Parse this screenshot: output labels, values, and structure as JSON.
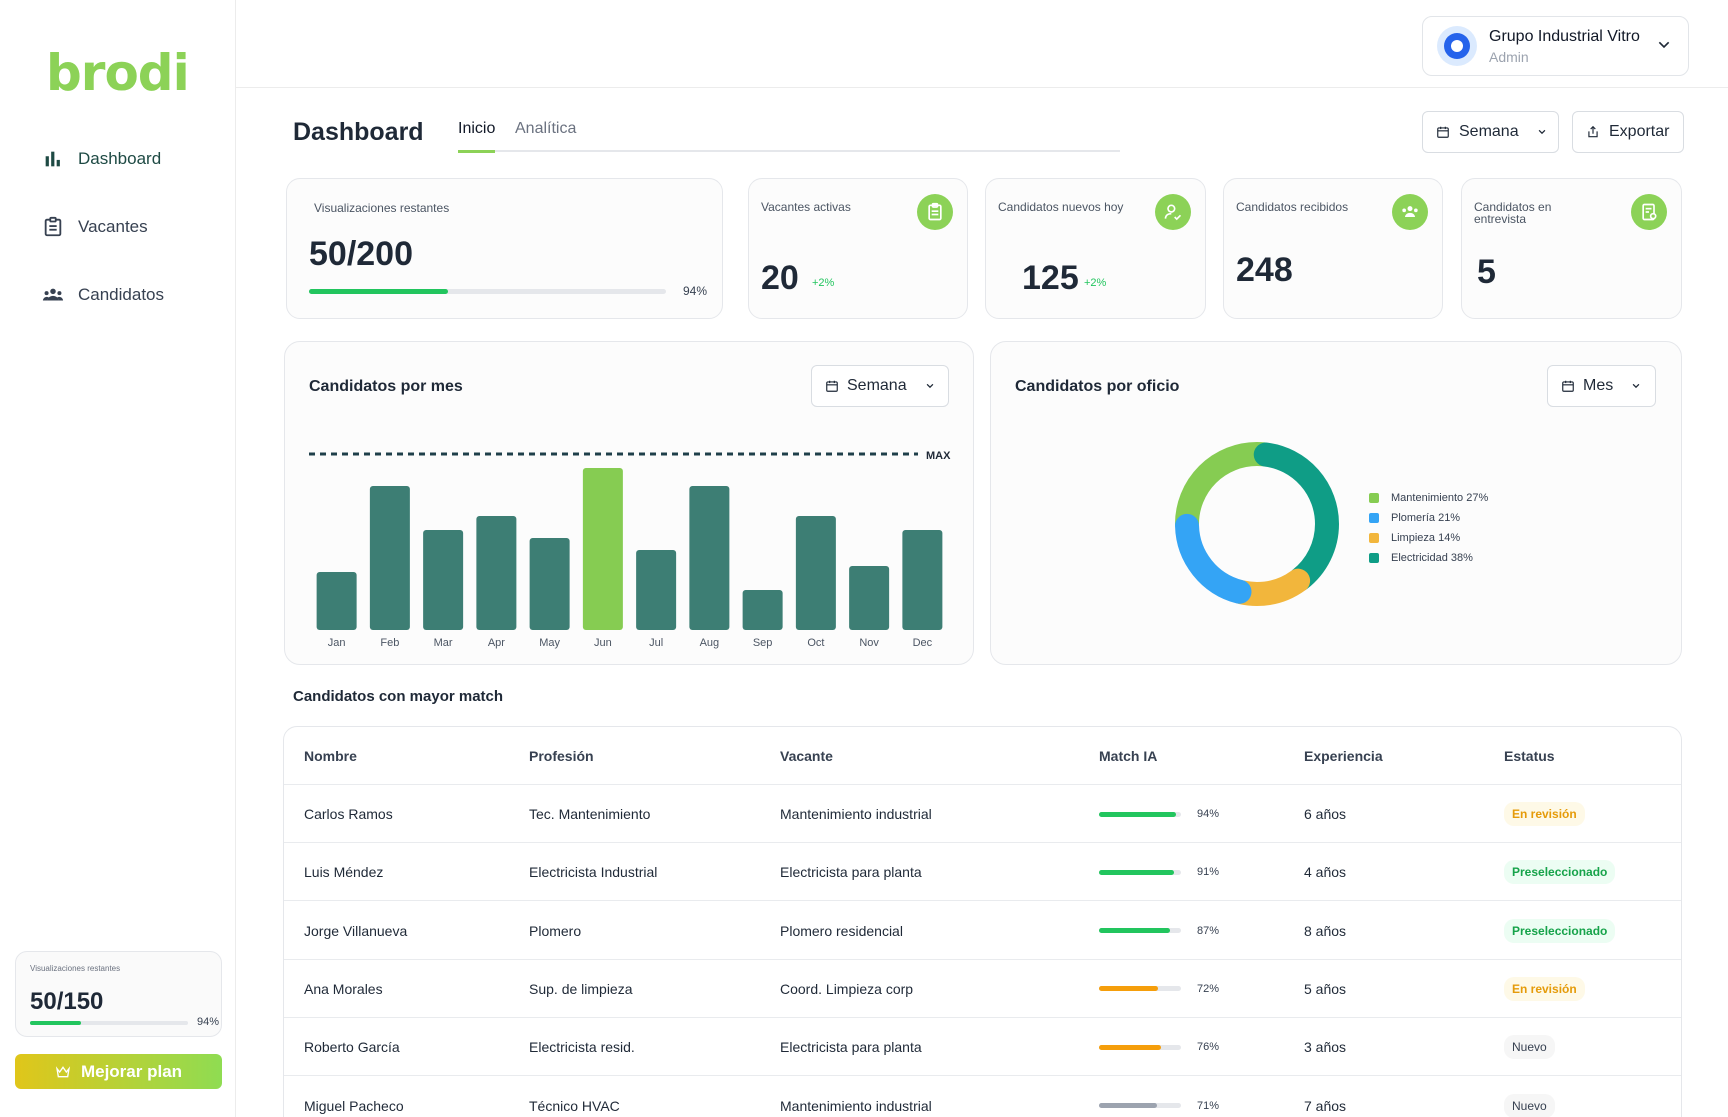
{
  "brand": {
    "logo": "brodi",
    "accent": "#8cd257"
  },
  "sidebar": {
    "items": [
      {
        "label": "Dashboard",
        "icon": "bar-chart-icon"
      },
      {
        "label": "Vacantes",
        "icon": "clipboard-icon"
      },
      {
        "label": "Candidatos",
        "icon": "group-icon"
      }
    ],
    "views_card": {
      "label": "Visualizaciones restantes",
      "value": "50/150",
      "percent": "94%",
      "fill_fraction": 0.32
    },
    "upgrade_label": "Mejorar plan"
  },
  "topbar": {
    "org_name": "Grupo Industrial Vitro",
    "org_role": "Admin"
  },
  "header": {
    "title": "Dashboard",
    "tabs": [
      "Inicio",
      "Analítica"
    ],
    "period_label": "Semana",
    "export_label": "Exportar"
  },
  "kpis": {
    "views": {
      "label": "Visualizaciones restantes",
      "value": "50/200",
      "percent": "94%",
      "fill_fraction": 0.39
    },
    "active": {
      "label": "Vacantes activas",
      "value": "20",
      "delta": "+2%"
    },
    "new_today": {
      "label": "Candidatos nuevos hoy",
      "value": "125",
      "delta": "+2%"
    },
    "received": {
      "label": "Candidatos recibidos",
      "value": "248"
    },
    "interview": {
      "label": "Candidatos en entrevista",
      "value": "5"
    }
  },
  "bar_panel": {
    "title": "Candidatos por mes",
    "period_label": "Semana",
    "max_label": "MAX"
  },
  "donut_panel": {
    "title": "Candidatos por oficio",
    "period_label": "Mes"
  },
  "chart_data": [
    {
      "type": "bar",
      "title": "Candidatos por mes",
      "categories": [
        "Jan",
        "Feb",
        "Mar",
        "Apr",
        "May",
        "Jun",
        "Jul",
        "Aug",
        "Sep",
        "Oct",
        "Nov",
        "Dec"
      ],
      "values": [
        29,
        72,
        50,
        57,
        46,
        81,
        40,
        72,
        20,
        57,
        32,
        50
      ],
      "max_line": 88,
      "ylim": [
        0,
        100
      ],
      "highlight_index": 5,
      "colors": {
        "bar": "#3d7e74",
        "highlight": "#86cc52",
        "max_line": "#1f3f4a"
      }
    },
    {
      "type": "pie",
      "title": "Candidatos por oficio",
      "labels": [
        "Mantenimiento 27%",
        "Plomería 21%",
        "Limpieza 14%",
        "Electricidad 38%"
      ],
      "values": [
        27,
        21,
        14,
        38
      ],
      "colors": [
        "#86cc52",
        "#34a4f5",
        "#f2b63c",
        "#0f9d86"
      ]
    }
  ],
  "table": {
    "title": "Candidatos con mayor match",
    "columns": [
      "Nombre",
      "Profesión",
      "Vacante",
      "Match IA",
      "Experiencia",
      "Estatus"
    ],
    "rows": [
      {
        "name": "Carlos Ramos",
        "profession": "Tec. Mantenimiento",
        "vacancy": "Mantenimiento industrial",
        "match": "94%",
        "match_value": 0.94,
        "match_color": "#22c55e",
        "experience": "6 años",
        "status": "En revisión",
        "status_type": "rev"
      },
      {
        "name": "Luis Méndez",
        "profession": "Electricista Industrial",
        "vacancy": "Electricista para planta",
        "match": "91%",
        "match_value": 0.91,
        "match_color": "#22c55e",
        "experience": "4 años",
        "status": "Preseleccionado",
        "status_type": "pre"
      },
      {
        "name": "Jorge Villanueva",
        "profession": "Plomero",
        "vacancy": "Plomero residencial",
        "match": "87%",
        "match_value": 0.87,
        "match_color": "#22c55e",
        "experience": "8 años",
        "status": "Preseleccionado",
        "status_type": "pre"
      },
      {
        "name": "Ana Morales",
        "profession": "Sup. de limpieza",
        "vacancy": "Coord. Limpieza corp",
        "match": "72%",
        "match_value": 0.72,
        "match_color": "#f59e0b",
        "experience": "5 años",
        "status": "En revisión",
        "status_type": "rev"
      },
      {
        "name": "Roberto García",
        "profession": "Electricista resid.",
        "vacancy": "Electricista para  planta",
        "match": "76%",
        "match_value": 0.76,
        "match_color": "#f59e0b",
        "experience": "3 años",
        "status": "Nuevo",
        "status_type": "new"
      },
      {
        "name": "Miguel Pacheco",
        "profession": "Técnico HVAC",
        "vacancy": "Mantenimiento industrial",
        "match": "71%",
        "match_value": 0.71,
        "match_color": "#9ca3af",
        "experience": "7 años",
        "status": "Nuevo",
        "status_type": "new"
      }
    ]
  }
}
